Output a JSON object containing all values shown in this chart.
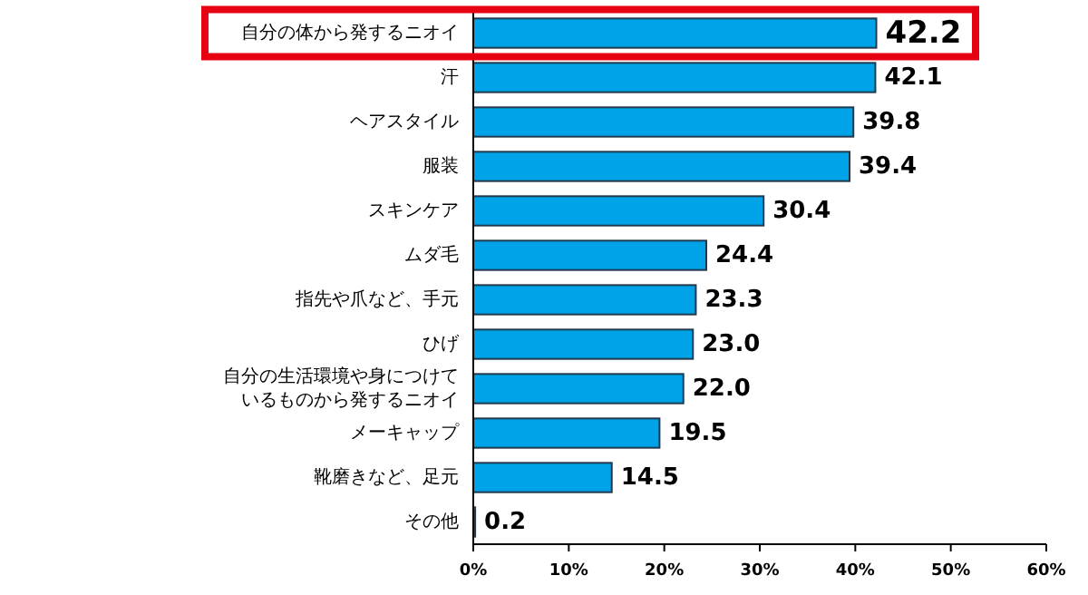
{
  "chart_data": {
    "type": "bar",
    "orientation": "horizontal",
    "categories": [
      "自分の体から発するニオイ",
      "汗",
      "ヘアスタイル",
      "服装",
      "スキンケア",
      "ムダ毛",
      "指先や爪など、手元",
      "ひげ",
      "自分の生活環境や身につけているものから発するニオイ",
      "メーキャップ",
      "靴磨きなど、足元",
      "その他"
    ],
    "values": [
      42.2,
      42.1,
      39.8,
      39.4,
      30.4,
      24.4,
      23.3,
      23.0,
      22.0,
      19.5,
      14.5,
      0.2
    ],
    "value_labels": [
      "42.2",
      "42.1",
      "39.8",
      "39.4",
      "30.4",
      "24.4",
      "23.3",
      "23.0",
      "22.0",
      "19.5",
      "14.5",
      "0.2"
    ],
    "color": "#00a3e8",
    "xlim": [
      0,
      60
    ],
    "xticks": [
      {
        "value": 0,
        "label": "0%"
      },
      {
        "value": 10,
        "label": "10%"
      },
      {
        "value": 20,
        "label": "20%"
      },
      {
        "value": 30,
        "label": "30%"
      },
      {
        "value": 40,
        "label": "40%"
      },
      {
        "value": 50,
        "label": "50%"
      },
      {
        "value": 60,
        "label": "60%"
      }
    ],
    "grid": false
  }
}
